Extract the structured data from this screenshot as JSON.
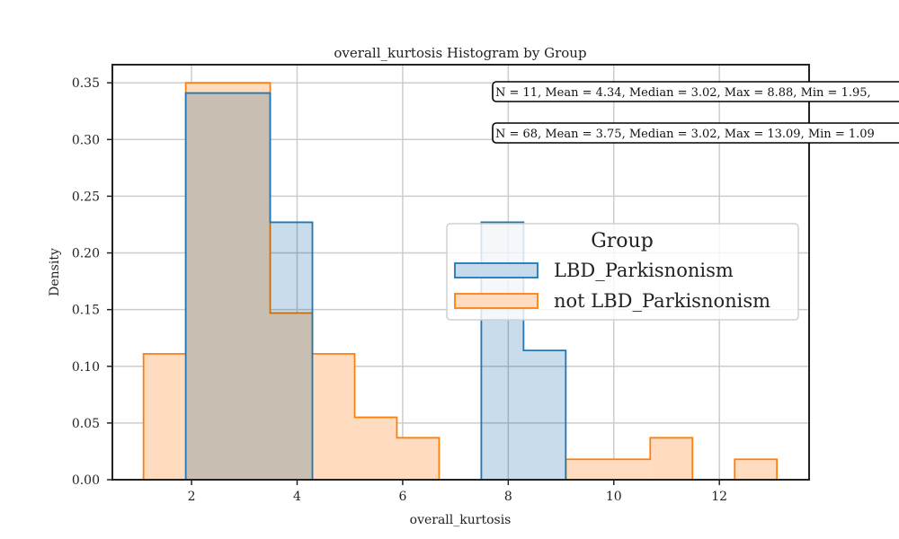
{
  "chart_data": {
    "type": "histogram",
    "title": "overall_kurtosis Histogram by Group",
    "xlabel": "overall_kurtosis",
    "ylabel": "Density",
    "xlim": [
      0.5,
      13.7
    ],
    "ylim": [
      0,
      0.366
    ],
    "xticks": [
      2,
      4,
      6,
      8,
      10,
      12
    ],
    "yticks": [
      0.0,
      0.05,
      0.1,
      0.15,
      0.2,
      0.25,
      0.3,
      0.35
    ],
    "yticklabels": [
      "0.00",
      "0.05",
      "0.10",
      "0.15",
      "0.20",
      "0.25",
      "0.30",
      "0.35"
    ],
    "grid": true,
    "legend": {
      "title": "Group",
      "placement": "center-right"
    },
    "series": [
      {
        "name": "not LBD_Parkisnonism",
        "color": "#ff7f0e",
        "fill": "#ffdcbf",
        "bins": [
          {
            "x0": 1.09,
            "x1": 1.89,
            "y": 0.111
          },
          {
            "x0": 1.89,
            "x1": 3.49,
            "y": 0.35
          },
          {
            "x0": 3.49,
            "x1": 4.29,
            "y": 0.147
          },
          {
            "x0": 4.29,
            "x1": 5.09,
            "y": 0.111
          },
          {
            "x0": 5.09,
            "x1": 5.89,
            "y": 0.055
          },
          {
            "x0": 5.89,
            "x1": 6.69,
            "y": 0.037
          },
          {
            "x0": 6.69,
            "x1": 9.09,
            "y": 0.0
          },
          {
            "x0": 9.09,
            "x1": 10.69,
            "y": 0.018
          },
          {
            "x0": 10.69,
            "x1": 11.49,
            "y": 0.037
          },
          {
            "x0": 11.49,
            "x1": 12.29,
            "y": 0.0
          },
          {
            "x0": 12.29,
            "x1": 13.09,
            "y": 0.018
          }
        ]
      },
      {
        "name": "LBD_Parkisnonism",
        "color": "#1f77b4",
        "fill": "#c5daeb",
        "bins": [
          {
            "x0": 1.89,
            "x1": 3.49,
            "y": 0.341
          },
          {
            "x0": 3.49,
            "x1": 4.29,
            "y": 0.227
          },
          {
            "x0": 4.29,
            "x1": 7.49,
            "y": 0.0
          },
          {
            "x0": 7.49,
            "x1": 8.29,
            "y": 0.227
          },
          {
            "x0": 8.29,
            "x1": 9.09,
            "y": 0.114
          }
        ]
      }
    ],
    "annotations": [
      {
        "text": "N = 11, Mean = 4.34, Median = 3.02, Max = 8.88, Min = 1.95,",
        "series": "LBD_Parkisnonism"
      },
      {
        "text": "N = 68, Mean = 3.75, Median = 3.02, Max = 13.09, Min = 1.09",
        "series": "not LBD_Parkisnonism"
      }
    ]
  }
}
